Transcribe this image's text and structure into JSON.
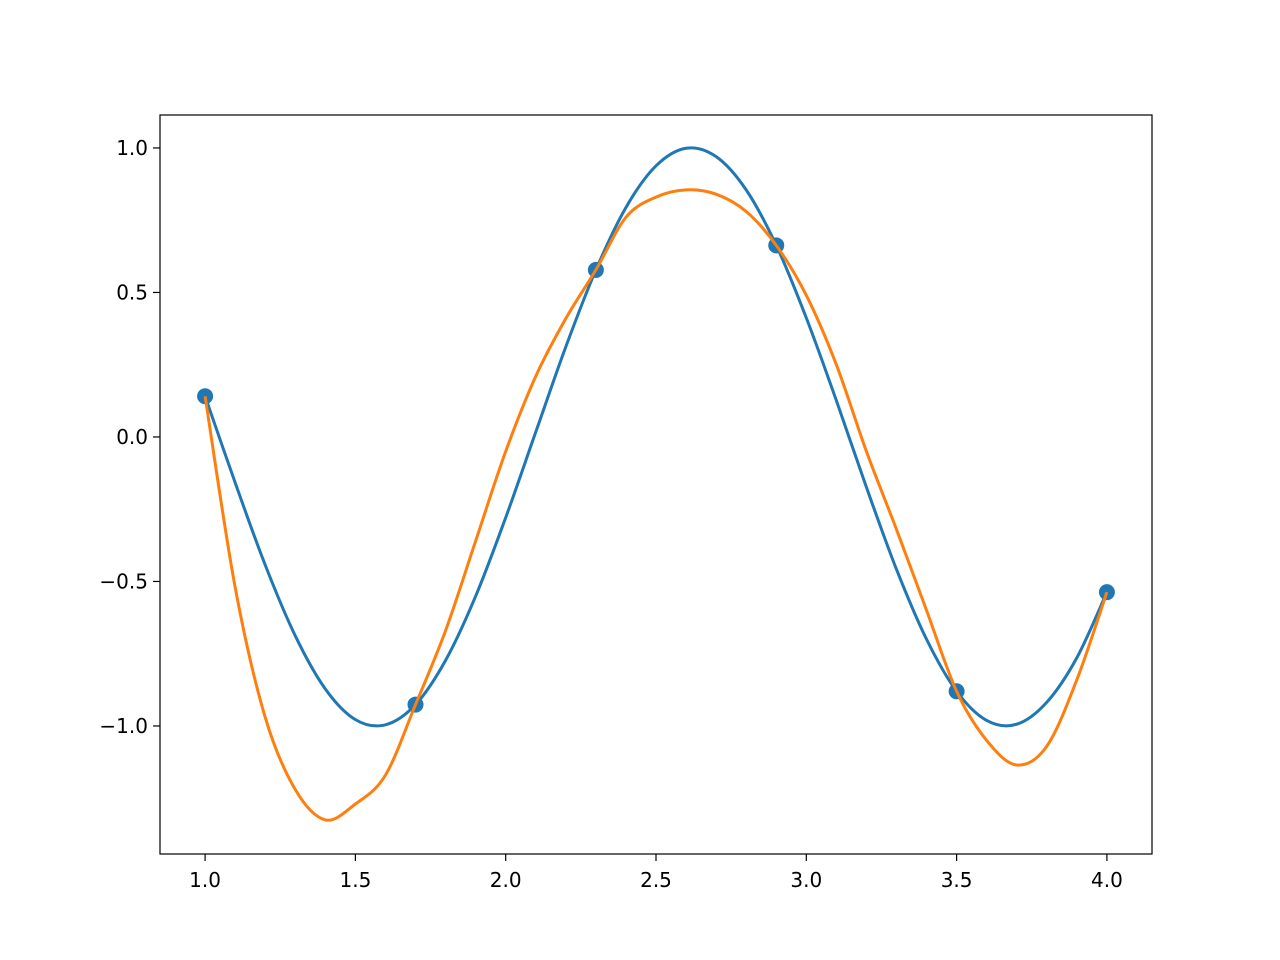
{
  "chart_data": {
    "type": "line",
    "title": "",
    "xlabel": "",
    "ylabel": "",
    "xlim": [
      0.85,
      4.15
    ],
    "ylim": [
      -1.443,
      1.114
    ],
    "grid": false,
    "x_ticks": [
      "1.0",
      "1.5",
      "2.0",
      "2.5",
      "3.0",
      "3.5",
      "4.0"
    ],
    "x_tick_values": [
      1.0,
      1.5,
      2.0,
      2.5,
      3.0,
      3.5,
      4.0
    ],
    "y_ticks": [
      "−1.0",
      "−0.5",
      "0.0",
      "0.5",
      "1.0"
    ],
    "y_tick_values": [
      -1.0,
      -0.5,
      0.0,
      0.5,
      1.0
    ],
    "points": {
      "color": "#1f77b4",
      "x": [
        1.0,
        1.7,
        2.3,
        2.9,
        3.5,
        4.0
      ],
      "y": [
        0.141,
        -0.926,
        0.578,
        0.663,
        -0.88,
        -0.537
      ]
    },
    "x": [
      1.0,
      1.1,
      1.2,
      1.3,
      1.4,
      1.5,
      1.6,
      1.7,
      1.8,
      1.9,
      2.0,
      2.1,
      2.2,
      2.3,
      2.4,
      2.5,
      2.6,
      2.7,
      2.8,
      2.9,
      3.0,
      3.1,
      3.2,
      3.3,
      3.4,
      3.5,
      3.6,
      3.7,
      3.8,
      3.9,
      4.0
    ],
    "series": [
      {
        "color": "#1f77b4",
        "values": [
          0.141,
          -0.158,
          -0.443,
          -0.688,
          -0.872,
          -0.978,
          -0.996,
          -0.926,
          -0.773,
          -0.551,
          -0.279,
          0.017,
          0.312,
          0.578,
          0.794,
          0.938,
          0.999,
          0.97,
          0.855,
          0.663,
          0.412,
          0.126,
          -0.174,
          -0.458,
          -0.7,
          -0.88,
          -0.981,
          -0.994,
          -0.918,
          -0.764,
          -0.537
        ]
      },
      {
        "color": "#ff7f0e",
        "values": [
          0.141,
          -0.52,
          -0.97,
          -1.22,
          -1.325,
          -1.27,
          -1.17,
          -0.926,
          -0.67,
          -0.36,
          -0.05,
          0.21,
          0.41,
          0.578,
          0.76,
          0.83,
          0.855,
          0.84,
          0.78,
          0.663,
          0.49,
          0.25,
          -0.05,
          -0.32,
          -0.6,
          -0.88,
          -1.05,
          -1.135,
          -1.07,
          -0.84,
          -0.537
        ]
      }
    ]
  }
}
